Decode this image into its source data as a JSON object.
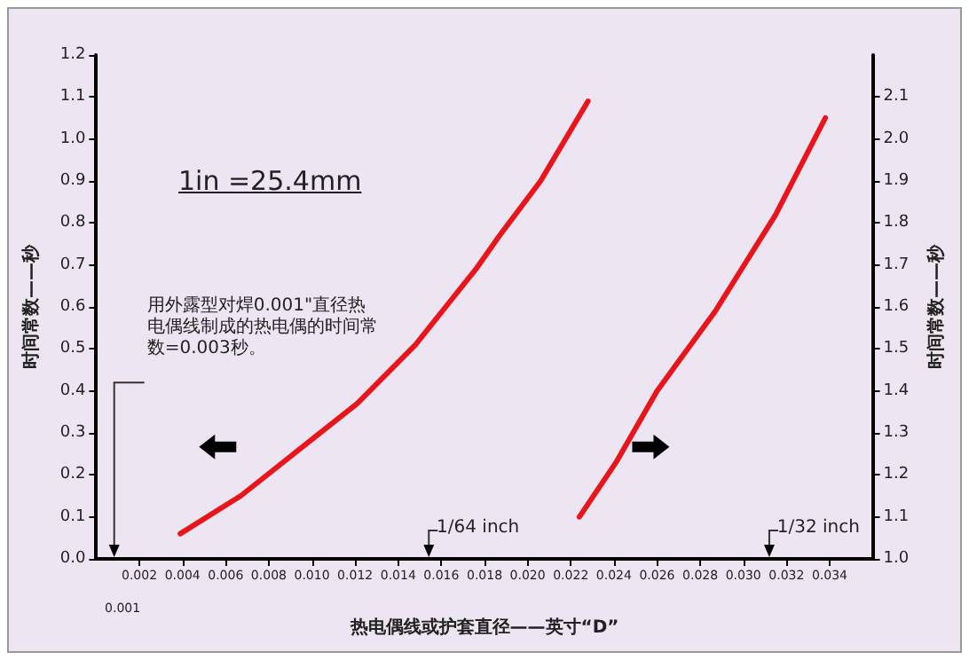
{
  "chart_data": {
    "type": "line",
    "xlabel": "热电偶线或护套直径——英寸“D”",
    "ylabel": "时间常数——秒",
    "y2label": "时间常数——秒",
    "xlim": [
      0,
      0.036
    ],
    "xticks": [
      0.002,
      0.004,
      0.006,
      0.008,
      {
        "value": 0.01,
        "label": "0.010"
      },
      0.012,
      0.014,
      0.016,
      0.018,
      {
        "value": 0.02,
        "label": "0.020"
      },
      0.022,
      0.024,
      0.026,
      0.028,
      {
        "value": 0.03,
        "label": "0.030"
      },
      0.032,
      0.034
    ],
    "ylim": [
      0,
      1.2
    ],
    "yticks": [
      {
        "value": 0,
        "label": "0.0"
      },
      0.1,
      0.2,
      0.3,
      0.4,
      0.5,
      0.6,
      0.7,
      0.8,
      0.9,
      {
        "value": 1,
        "label": "1.0"
      },
      1.1,
      1.2
    ],
    "y2lim": [
      1.0,
      2.2
    ],
    "y2ticks": [
      {
        "value": 1,
        "label": "1.0"
      },
      1.1,
      1.2,
      1.3,
      1.4,
      1.5,
      1.6,
      1.7,
      1.8,
      1.9,
      {
        "value": 2,
        "label": "2.0"
      },
      2.1
    ],
    "marker": "none",
    "line_style": "solid",
    "grid": false,
    "series": [
      {
        "color": "#e8161b",
        "x": [
          0.0039,
          0.0067,
          0.0094,
          0.0121,
          0.0148,
          0.0176,
          0.0187,
          0.0206,
          0.0228
        ],
        "values": [
          0.06,
          0.15,
          0.26,
          0.37,
          0.51,
          0.69,
          0.77,
          0.9,
          1.09
        ]
      },
      {
        "color": "#e8161b",
        "axis": "y2",
        "x": [
          0.0224,
          0.0241,
          0.026,
          0.0287,
          0.0315,
          0.0338
        ],
        "values": [
          1.1,
          1.23,
          1.4,
          1.59,
          1.82,
          2.05
        ]
      }
    ],
    "annotations": [
      "1in =25.4mm",
      "用外露型对焊0.001\"直径热电偶线制成的热电偶的时间常数=0.003秒。",
      "1/64 inch",
      "1/32 inch",
      "0.001"
    ]
  }
}
